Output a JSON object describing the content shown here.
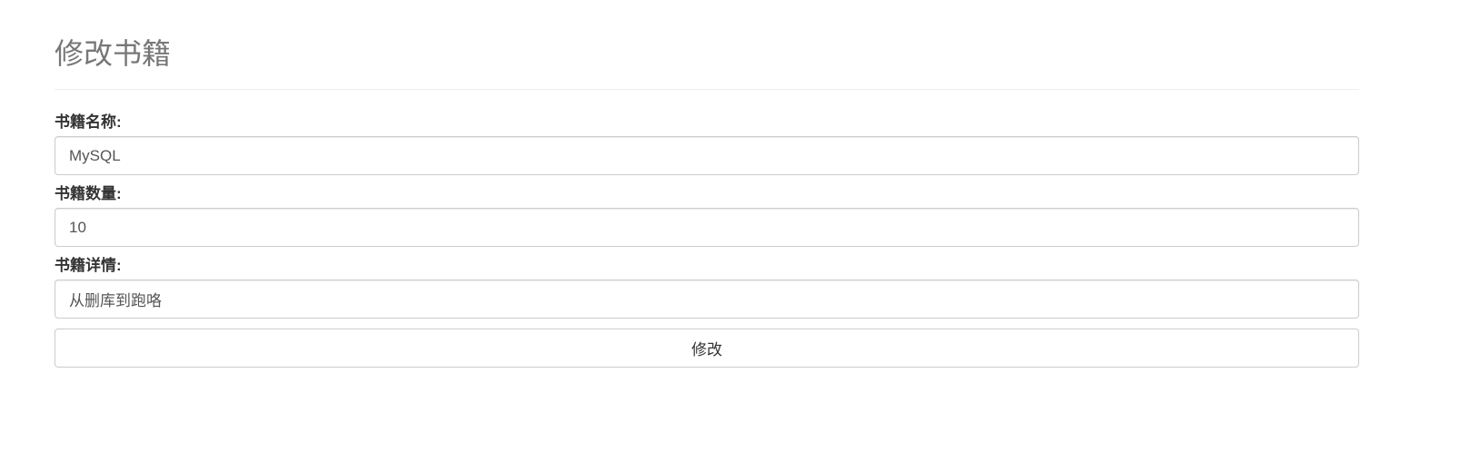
{
  "header": {
    "title": "修改书籍"
  },
  "form": {
    "fields": [
      {
        "label": "书籍名称:",
        "value": "MySQL"
      },
      {
        "label": "书籍数量:",
        "value": "10"
      },
      {
        "label": "书籍详情:",
        "value": "从删库到跑咯"
      }
    ],
    "submit_label": "修改"
  }
}
